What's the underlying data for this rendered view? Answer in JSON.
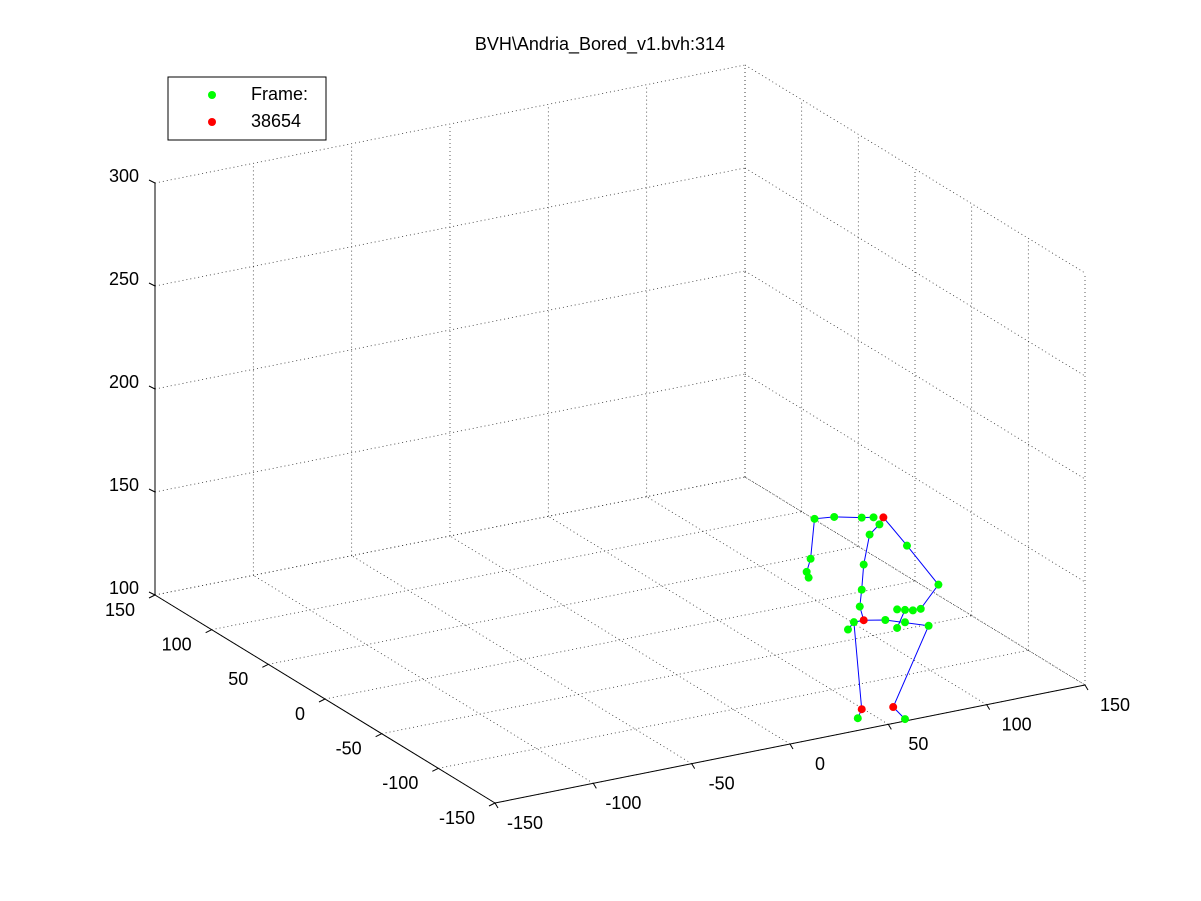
{
  "chart_data": {
    "type": "scatter3",
    "title": "BVH\\Andria_Bored_v1.bvh:314",
    "xlim": [
      -150,
      150
    ],
    "ylim": [
      -150,
      150
    ],
    "zlim": [
      100,
      300
    ],
    "xticks": [
      -150,
      -100,
      -50,
      0,
      50,
      100,
      150
    ],
    "yticks": [
      -150,
      -100,
      -50,
      0,
      50,
      100,
      150
    ],
    "zticks": [
      100,
      150,
      200,
      250,
      300
    ],
    "grid": true,
    "legend": "upper left",
    "series": [
      {
        "name": "Frame:",
        "color": "#00ff00",
        "x": [
          24,
          34,
          48,
          54,
          57,
          52,
          71,
          87,
          78,
          82,
          22,
          20,
          21,
          49,
          48,
          47,
          41,
          44,
          60,
          66,
          70,
          66,
          70,
          46,
          70,
          74
        ],
        "y": [
          -130,
          -130,
          -130,
          -130,
          -130,
          -130,
          -130,
          -130,
          -130,
          -130,
          -130,
          -130,
          -130,
          -130,
          -130,
          -130,
          -130,
          -130,
          -130,
          -130,
          -130,
          -130,
          -130,
          -130,
          -130,
          -130
        ],
        "z": [
          198,
          197,
          194,
          193,
          189,
          185,
          176,
          154,
          144,
          135,
          179,
          173,
          170,
          171,
          159,
          151,
          141,
          144,
          142,
          146,
          145,
          137,
          139,
          97,
          92,
          144
        ]
      },
      {
        "name": "38654",
        "color": "#ff0000",
        "x": [
          59,
          49,
          48,
          64
        ],
        "y": [
          -130,
          -130,
          -130,
          -130
        ],
        "z": [
          192,
          144,
          101,
          99
        ]
      }
    ],
    "skeleton": {
      "color": "#0000ff",
      "x": [
        46,
        48,
        44,
        49,
        60,
        82,
        64,
        70,
        null,
        49,
        47,
        48,
        49,
        52,
        57,
        59,
        null,
        54,
        48,
        34,
        24,
        22,
        20,
        null,
        59,
        71,
        87,
        78,
        70,
        66,
        null,
        44,
        41
      ],
      "y": [
        -130,
        -130,
        -130,
        -130,
        -130,
        -130,
        -130,
        -130,
        null,
        -130,
        -130,
        -130,
        -130,
        -130,
        -130,
        -130,
        null,
        -130,
        -130,
        -130,
        -130,
        -130,
        -130,
        null,
        -130,
        -130,
        -130,
        -130,
        -130,
        -130,
        null,
        -130,
        -130
      ],
      "z": [
        97,
        101,
        144,
        144,
        142,
        135,
        99,
        92,
        null,
        144,
        151,
        159,
        171,
        185,
        189,
        192,
        null,
        193,
        194,
        197,
        198,
        179,
        173,
        null,
        192,
        176,
        154,
        144,
        145,
        137,
        null,
        144,
        141
      ]
    }
  }
}
